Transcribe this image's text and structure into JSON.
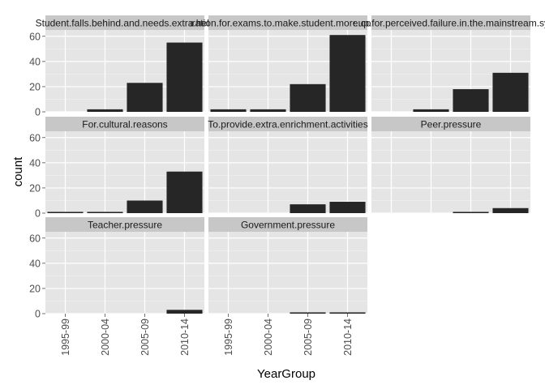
{
  "chart_data": {
    "type": "bar",
    "layout": "faceted 3x3 (ggplot2 facet_wrap)",
    "xlabel": "YearGroup",
    "ylabel": "count",
    "categories": [
      "1995-99",
      "2000-04",
      "2005-09",
      "2010-14"
    ],
    "ylim": [
      0,
      65
    ],
    "yticks": [
      0,
      20,
      40,
      60
    ],
    "bar_color": "#262626",
    "panel_bg": "#e5e5e5",
    "strip_bg": "#c7c7c7",
    "grid": true,
    "panels": [
      {
        "title": "Student.falls.behind.and.needs.extra.help",
        "values": [
          0,
          2,
          23,
          55
        ]
      },
      {
        "title": "Preparation.for.exams.to.make.student.more.competitive",
        "values": [
          2,
          2,
          22,
          61
        ]
      },
      {
        "title": "Make.up.for.perceived.failure.in.the.mainstream.system",
        "values": [
          0,
          2,
          18,
          31
        ]
      },
      {
        "title": "For.cultural.reasons",
        "values": [
          1,
          1,
          10,
          33
        ]
      },
      {
        "title": "To.provide.extra.enrichment.activities",
        "values": [
          0,
          0,
          7,
          9
        ]
      },
      {
        "title": "Peer.pressure",
        "values": [
          0,
          0,
          1,
          4
        ]
      },
      {
        "title": "Teacher.pressure",
        "values": [
          0,
          0,
          0,
          3
        ]
      },
      {
        "title": "Government.pressure",
        "values": [
          0,
          0,
          1,
          1
        ]
      }
    ]
  }
}
